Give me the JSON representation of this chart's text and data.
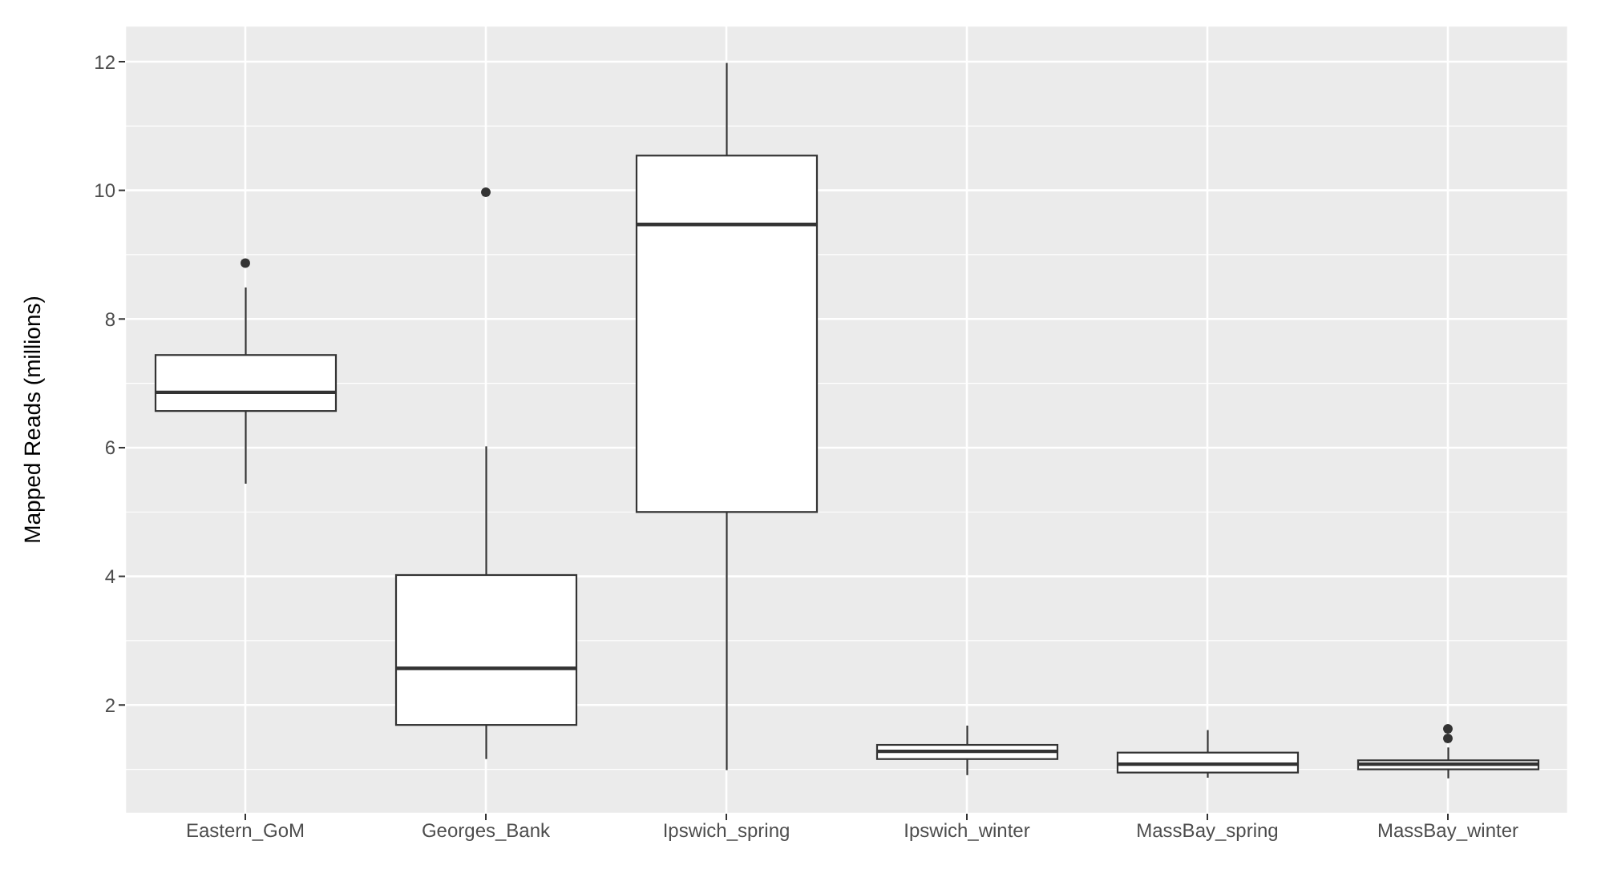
{
  "chart_data": {
    "type": "box",
    "ylabel": "Mapped Reads (millions)",
    "categories": [
      "Eastern_GoM",
      "Georges_Bank",
      "Ipswich_spring",
      "Ipswich_winter",
      "MassBay_spring",
      "MassBay_winter"
    ],
    "boxes": [
      {
        "low": 5.44,
        "q1": 6.57,
        "median": 6.86,
        "q3": 7.44,
        "high": 8.49,
        "outliers": [
          8.87
        ]
      },
      {
        "low": 1.16,
        "q1": 1.69,
        "median": 2.57,
        "q3": 4.02,
        "high": 6.02,
        "outliers": [
          9.97
        ]
      },
      {
        "low": 0.99,
        "q1": 5.0,
        "median": 9.47,
        "q3": 10.54,
        "high": 11.98
      },
      {
        "low": 0.91,
        "q1": 1.16,
        "median": 1.28,
        "q3": 1.38,
        "high": 1.68
      },
      {
        "low": 0.87,
        "q1": 0.95,
        "median": 1.08,
        "q3": 1.26,
        "high": 1.61
      },
      {
        "low": 0.86,
        "q1": 1.0,
        "median": 1.08,
        "q3": 1.14,
        "high": 1.34,
        "outliers": [
          1.48,
          1.63
        ]
      }
    ],
    "ylim": [
      0.31,
      12.56
    ],
    "yticks": [
      2,
      4,
      6,
      8,
      10,
      12
    ],
    "grid": true
  }
}
